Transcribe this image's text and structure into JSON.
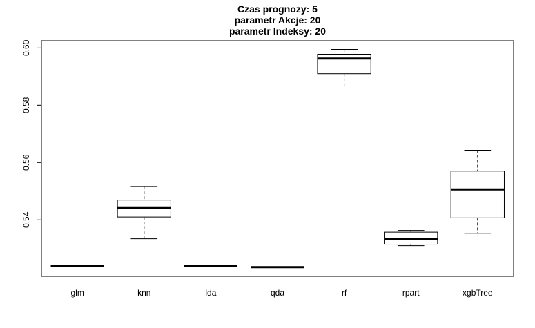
{
  "chart_data": {
    "type": "boxplot",
    "title_lines": [
      "Czas prognozy: 5",
      "parametr Akcje: 20",
      "parametr Indeksy: 20"
    ],
    "xlabel": "",
    "ylabel": "",
    "categories": [
      "glm",
      "knn",
      "lda",
      "qda",
      "rf",
      "rpart",
      "xgbTree"
    ],
    "y_ticks": [
      0.54,
      0.56,
      0.58,
      0.6
    ],
    "y_tick_labels": [
      "0.54",
      "0.56",
      "0.58",
      "0.60"
    ],
    "ylim": [
      0.5203,
      0.6025
    ],
    "grid": false,
    "boxes": [
      {
        "category": "glm",
        "min": 0.5238,
        "q1": 0.5238,
        "median": 0.5238,
        "q3": 0.5238,
        "max": 0.5238
      },
      {
        "category": "knn",
        "min": 0.5334,
        "q1": 0.541,
        "median": 0.5441,
        "q3": 0.5469,
        "max": 0.5516
      },
      {
        "category": "lda",
        "min": 0.5238,
        "q1": 0.5238,
        "median": 0.5238,
        "q3": 0.5238,
        "max": 0.5238
      },
      {
        "category": "qda",
        "min": 0.5235,
        "q1": 0.5235,
        "median": 0.5235,
        "q3": 0.5235,
        "max": 0.5235
      },
      {
        "category": "rf",
        "min": 0.586,
        "q1": 0.591,
        "median": 0.5963,
        "q3": 0.5978,
        "max": 0.5995
      },
      {
        "category": "rpart",
        "min": 0.531,
        "q1": 0.5315,
        "median": 0.5333,
        "q3": 0.5357,
        "max": 0.5363
      },
      {
        "category": "xgbTree",
        "min": 0.5353,
        "q1": 0.5407,
        "median": 0.5506,
        "q3": 0.557,
        "max": 0.5643
      }
    ]
  }
}
